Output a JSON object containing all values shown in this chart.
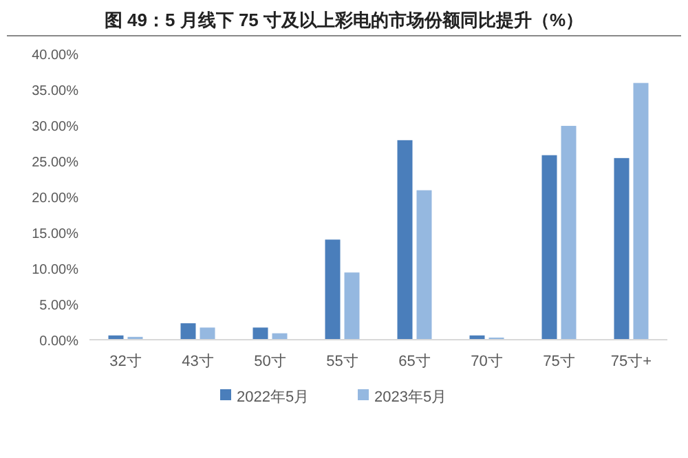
{
  "chart_data": {
    "type": "bar",
    "title": "图 49：5 月线下 75 寸及以上彩电的市场份额同比提升（%）",
    "categories": [
      "32寸",
      "43寸",
      "50寸",
      "55寸",
      "65寸",
      "70寸",
      "75寸",
      "75寸+"
    ],
    "series": [
      {
        "name": "2022年5月",
        "color": "#4a7ebb",
        "values": [
          0.6,
          2.3,
          1.7,
          14.0,
          27.9,
          0.6,
          25.8,
          25.4
        ]
      },
      {
        "name": "2023年5月",
        "color": "#95b8e0",
        "values": [
          0.4,
          1.7,
          0.9,
          9.4,
          20.9,
          0.3,
          29.9,
          35.9
        ]
      }
    ],
    "ylim": [
      0,
      40
    ],
    "yticks": [
      {
        "value": 0,
        "label": "0.00%"
      },
      {
        "value": 5,
        "label": "5.00%"
      },
      {
        "value": 10,
        "label": "10.00%"
      },
      {
        "value": 15,
        "label": "15.00%"
      },
      {
        "value": 20,
        "label": "20.00%"
      },
      {
        "value": 25,
        "label": "25.00%"
      },
      {
        "value": 30,
        "label": "30.00%"
      },
      {
        "value": 35,
        "label": "35.00%"
      },
      {
        "value": 40,
        "label": "40.00%"
      }
    ],
    "legend": "bottom"
  }
}
